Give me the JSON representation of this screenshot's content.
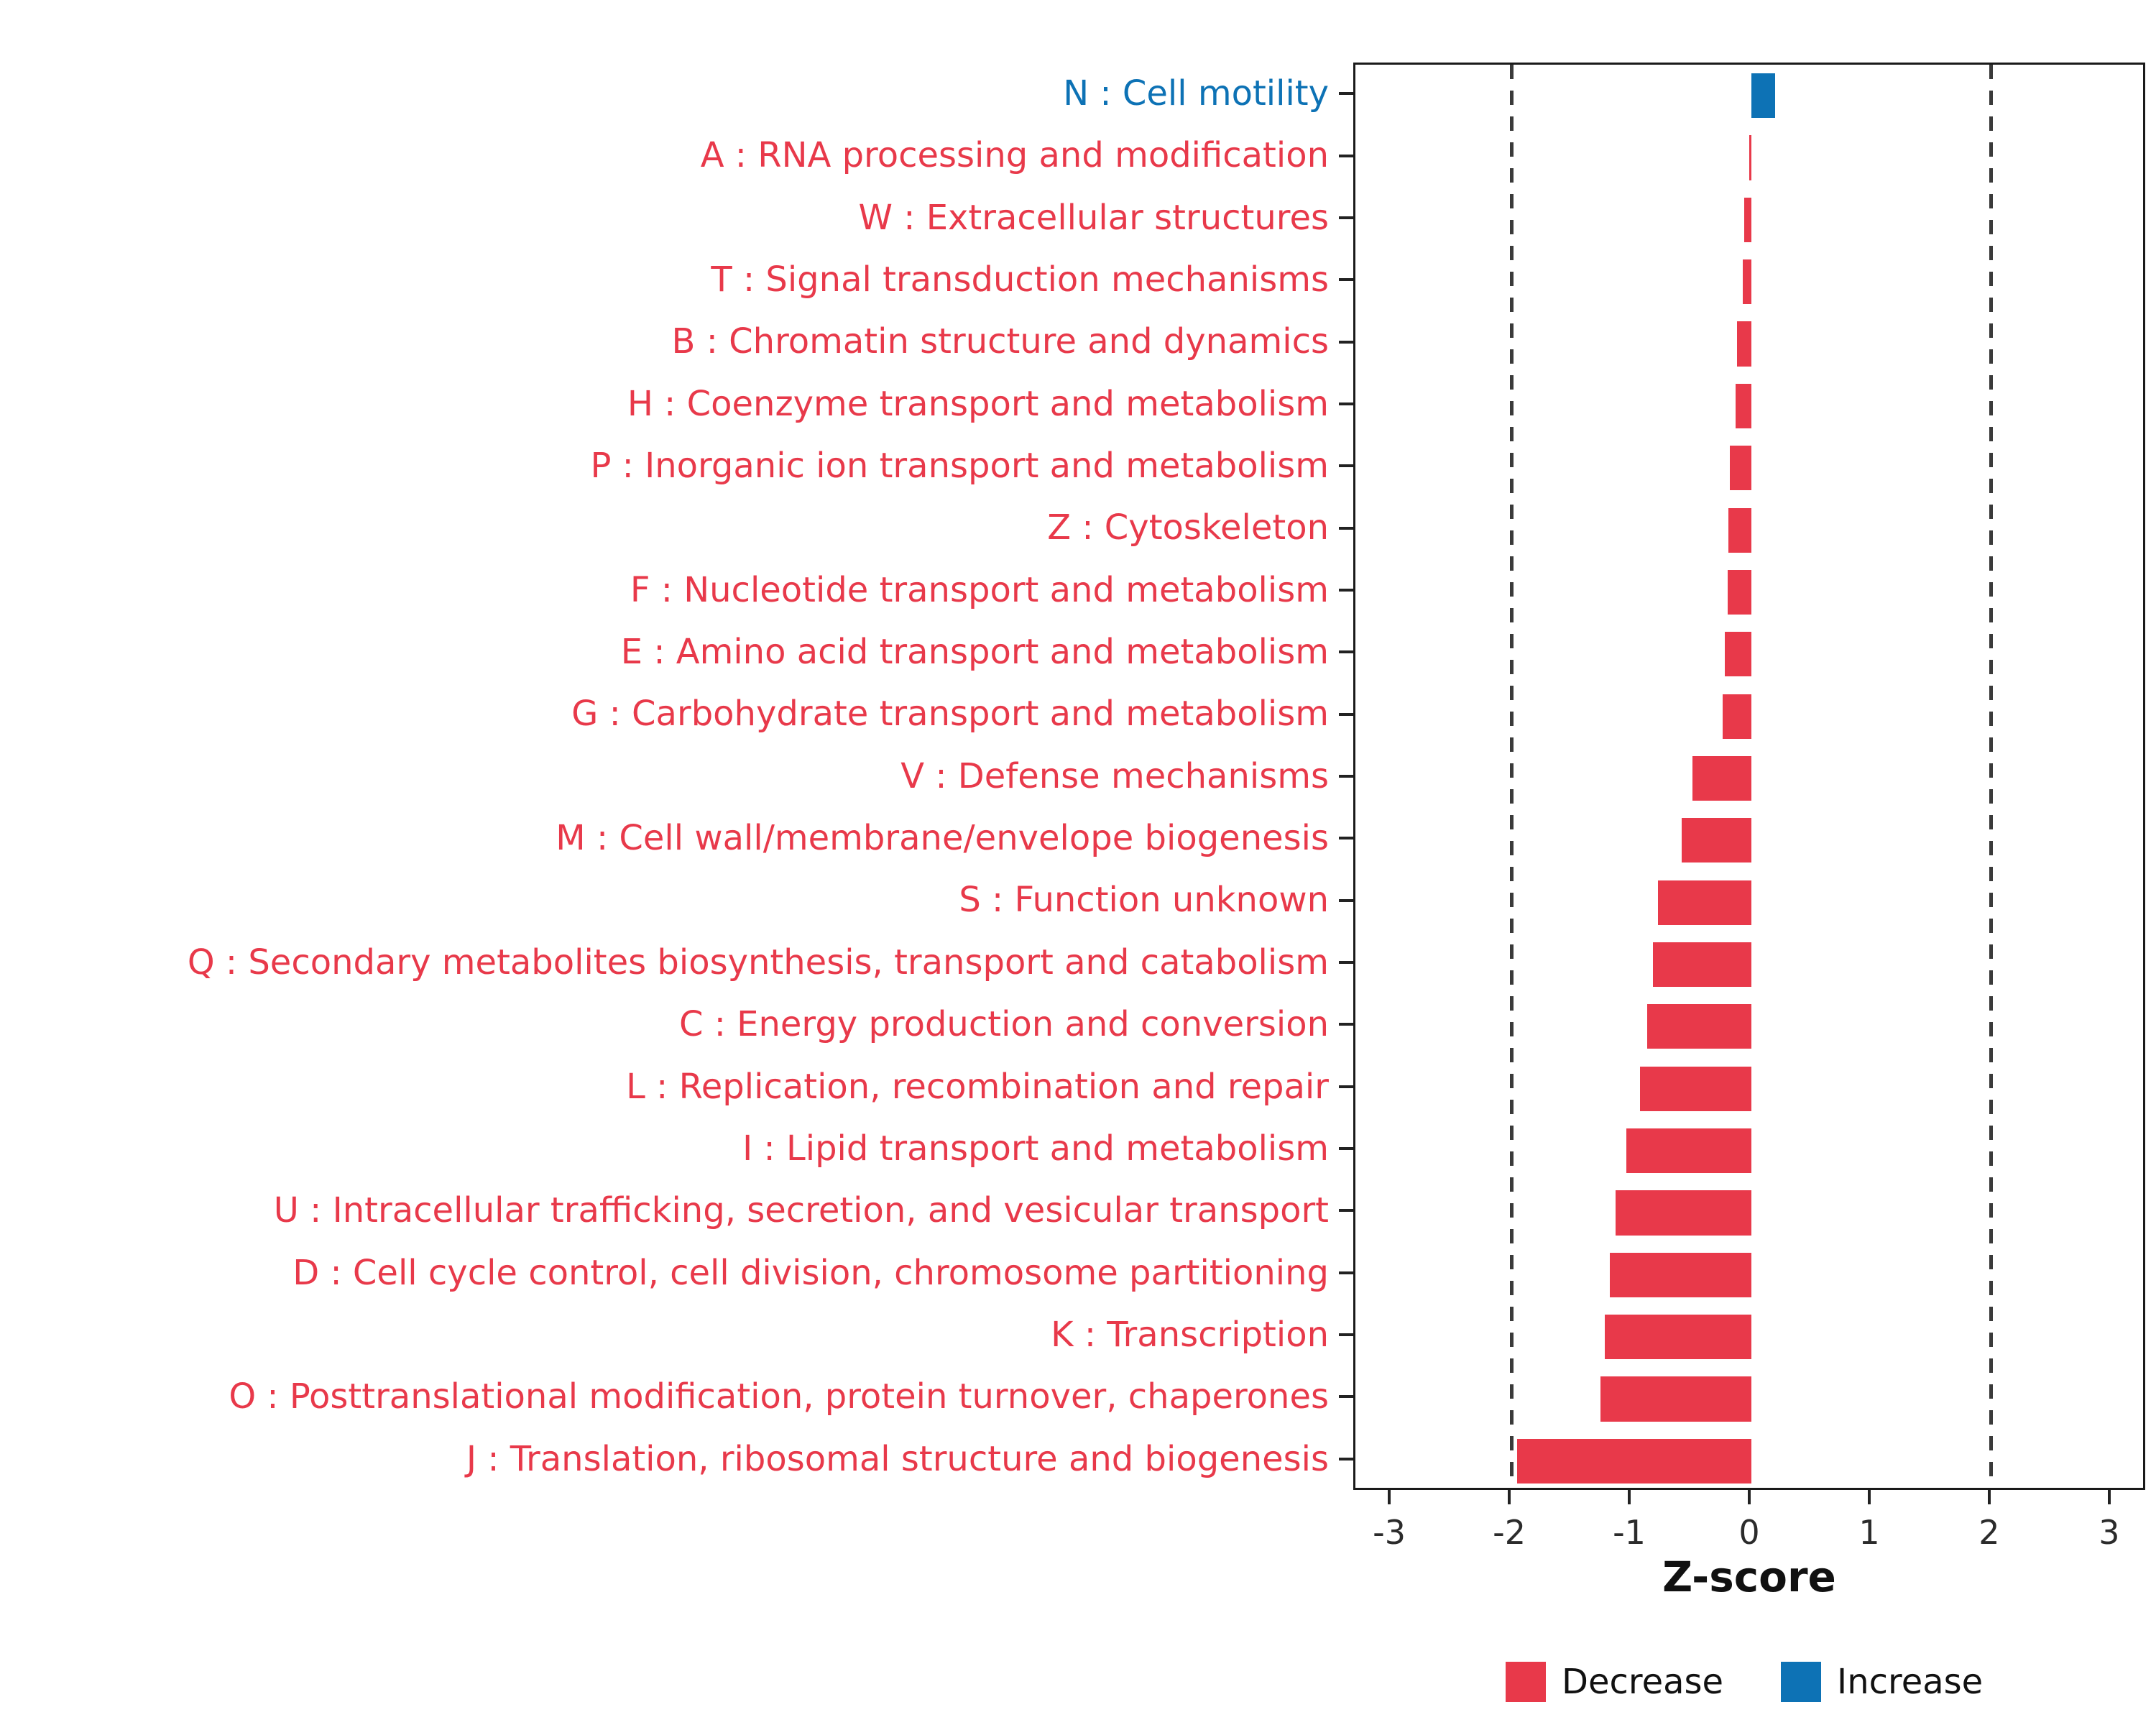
{
  "chart_data": {
    "type": "bar",
    "orientation": "horizontal",
    "title": "",
    "xlabel": "Z-score",
    "ylabel": "",
    "xlim": [
      -3,
      3
    ],
    "x_ticks": [
      "-3",
      "-2",
      "-1",
      "0",
      "1",
      "2",
      "3"
    ],
    "x_tick_values": [
      -3,
      -2,
      -1,
      0,
      1,
      2,
      3
    ],
    "reference_lines": [
      -2,
      2
    ],
    "grid": "off",
    "legend_position": "bottom-right",
    "colors": {
      "decrease": "#E8394A",
      "increase": "#0D72B5"
    },
    "categories": [
      {
        "label": "N : Cell motility",
        "value": 0.2,
        "direction": "increase"
      },
      {
        "label": "A : RNA processing and modification",
        "value": -0.02,
        "direction": "decrease"
      },
      {
        "label": "W : Extracellular structures",
        "value": -0.06,
        "direction": "decrease"
      },
      {
        "label": "T : Signal transduction mechanisms",
        "value": -0.07,
        "direction": "decrease"
      },
      {
        "label": "B : Chromatin structure and dynamics",
        "value": -0.12,
        "direction": "decrease"
      },
      {
        "label": "H : Coenzyme transport and metabolism",
        "value": -0.13,
        "direction": "decrease"
      },
      {
        "label": "P : Inorganic ion transport and metabolism",
        "value": -0.18,
        "direction": "decrease"
      },
      {
        "label": "Z : Cytoskeleton",
        "value": -0.19,
        "direction": "decrease"
      },
      {
        "label": "F : Nucleotide transport and metabolism",
        "value": -0.2,
        "direction": "decrease"
      },
      {
        "label": "E : Amino acid transport and metabolism",
        "value": -0.22,
        "direction": "decrease"
      },
      {
        "label": "G : Carbohydrate transport and metabolism",
        "value": -0.24,
        "direction": "decrease"
      },
      {
        "label": "V : Defense mechanisms",
        "value": -0.49,
        "direction": "decrease"
      },
      {
        "label": "M : Cell wall/membrane/envelope biogenesis",
        "value": -0.58,
        "direction": "decrease"
      },
      {
        "label": "S : Function unknown",
        "value": -0.78,
        "direction": "decrease"
      },
      {
        "label": "Q : Secondary metabolites biosynthesis, transport and catabolism",
        "value": -0.82,
        "direction": "decrease"
      },
      {
        "label": "C : Energy production and conversion",
        "value": -0.87,
        "direction": "decrease"
      },
      {
        "label": "L : Replication, recombination and repair",
        "value": -0.93,
        "direction": "decrease"
      },
      {
        "label": "I : Lipid transport and metabolism",
        "value": -1.04,
        "direction": "decrease"
      },
      {
        "label": "U : Intracellular trafficking, secretion, and vesicular transport",
        "value": -1.13,
        "direction": "decrease"
      },
      {
        "label": "D : Cell cycle control, cell division, chromosome partitioning",
        "value": -1.18,
        "direction": "decrease"
      },
      {
        "label": "K : Transcription",
        "value": -1.22,
        "direction": "decrease"
      },
      {
        "label": "O : Posttranslational modification, protein turnover, chaperones",
        "value": -1.26,
        "direction": "decrease"
      },
      {
        "label": "J : Translation, ribosomal structure and biogenesis",
        "value": -1.95,
        "direction": "decrease"
      }
    ],
    "legend": [
      {
        "label": "Decrease",
        "color_key": "decrease"
      },
      {
        "label": "Increase",
        "color_key": "increase"
      }
    ]
  }
}
